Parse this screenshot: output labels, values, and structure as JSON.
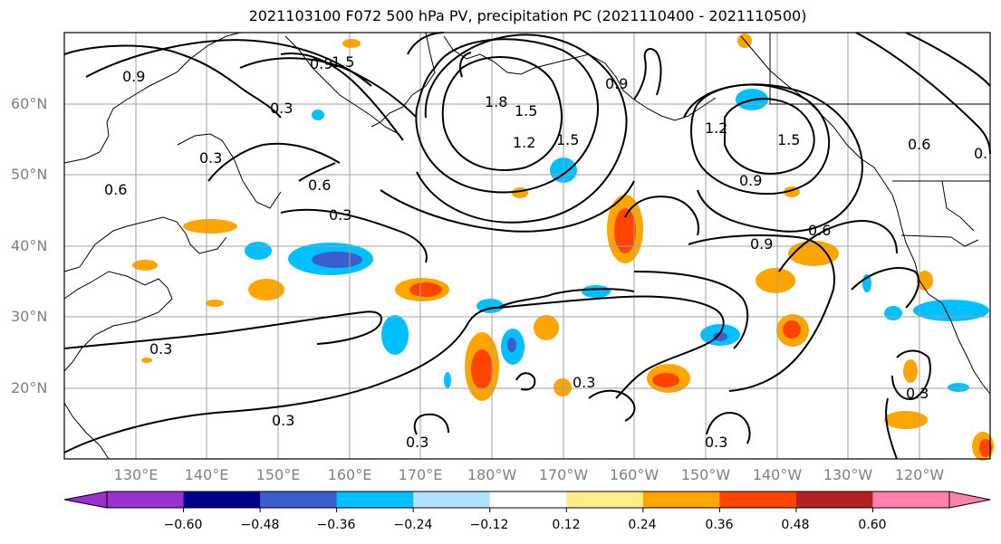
{
  "title": "2021103100 F072 500 hPa PV, precipitation PC (2021110400 - 2021110500)",
  "lat_labels": [
    "60°N",
    "50°N",
    "40°N",
    "30°N",
    "20°N"
  ],
  "lon_labels": [
    "130°E",
    "140°E",
    "150°E",
    "160°E",
    "170°E",
    "180°W",
    "170°W",
    "160°W",
    "150°W",
    "140°W",
    "130°W",
    "120°W"
  ],
  "colorbar": {
    "colors": [
      "#9932CC",
      "#00008B",
      "#3A5FCD",
      "#00BFFF",
      "#B0E2FF",
      "#FFFFFF",
      "#FFEC8B",
      "#FFA500",
      "#FF4500",
      "#B22222",
      "#FF82AB"
    ],
    "tick_labels": [
      "−0.60",
      "−0.48",
      "−0.36",
      "−0.24",
      "−0.12",
      "0.12",
      "0.24",
      "0.36",
      "0.48",
      "0.60"
    ]
  },
  "contour_labels": {
    "a": "0.9",
    "b": "0.9",
    "c": "1.5",
    "d": "0.3",
    "e": "1.8",
    "f": "1.5",
    "g": "0.9",
    "h": "1.2",
    "i": "1.5",
    "j": "1.2",
    "k": "1.5",
    "l": "0.6",
    "m": "0.3",
    "n": "0.6",
    "o": "0.6",
    "p": "0.3",
    "q": "0.9",
    "r": "0.9",
    "s": "0.6",
    "t": "0.3",
    "u": "0.3",
    "v": "0.3",
    "w": "0.3",
    "x": "0.3",
    "y": "0.3",
    "z": "0."
  }
}
